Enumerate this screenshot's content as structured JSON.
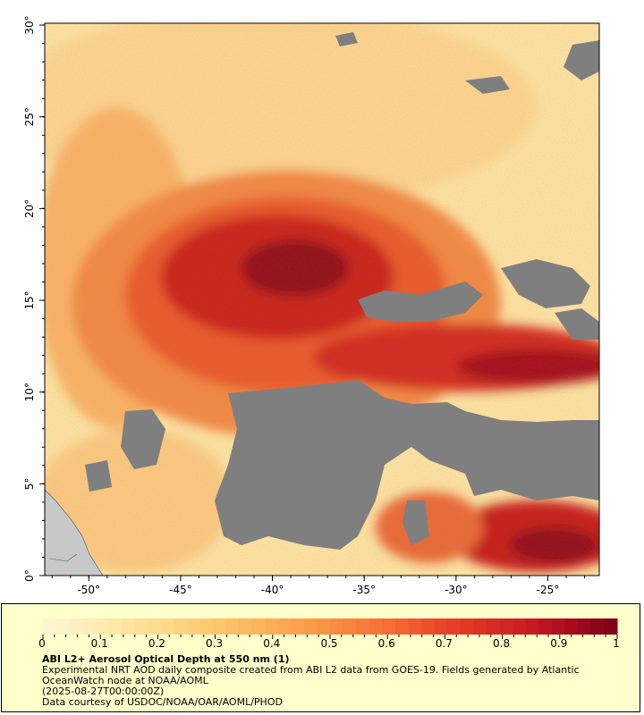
{
  "map": {
    "lat_labels": [
      "30°",
      "25°",
      "20°",
      "15°",
      "10°",
      "5°",
      "0°"
    ],
    "lon_labels": [
      "-50°",
      "-45°",
      "-40°",
      "-35°",
      "-30°",
      "-25°"
    ],
    "extent": {
      "lon_min": -52.4,
      "lon_max": -22.2,
      "lat_min": 0,
      "lat_max": 30.1
    },
    "colors": {
      "land": "#c8c8c8",
      "cloud": "#7f7f7f",
      "low": "#fff2c4",
      "high": "#7a0019"
    }
  },
  "legend": {
    "ticks": [
      "0",
      "0.1",
      "0.2",
      "0.3",
      "0.4",
      "0.5",
      "0.6",
      "0.7",
      "0.8",
      "0.9",
      "1"
    ],
    "title": "ABI L2+ Aerosol Optical Depth at 550 nm (1)",
    "description": "Experimental NRT AOD daily composite created from ABI L2 data from GOES-19. Fields generated by Atlantic OceanWatch node at NOAA/AOML",
    "date": "(2025-08-27T00:00:00Z)",
    "credit": "Data courtesy of USDOC/NOAA/OAR/AOML/PHOD"
  }
}
